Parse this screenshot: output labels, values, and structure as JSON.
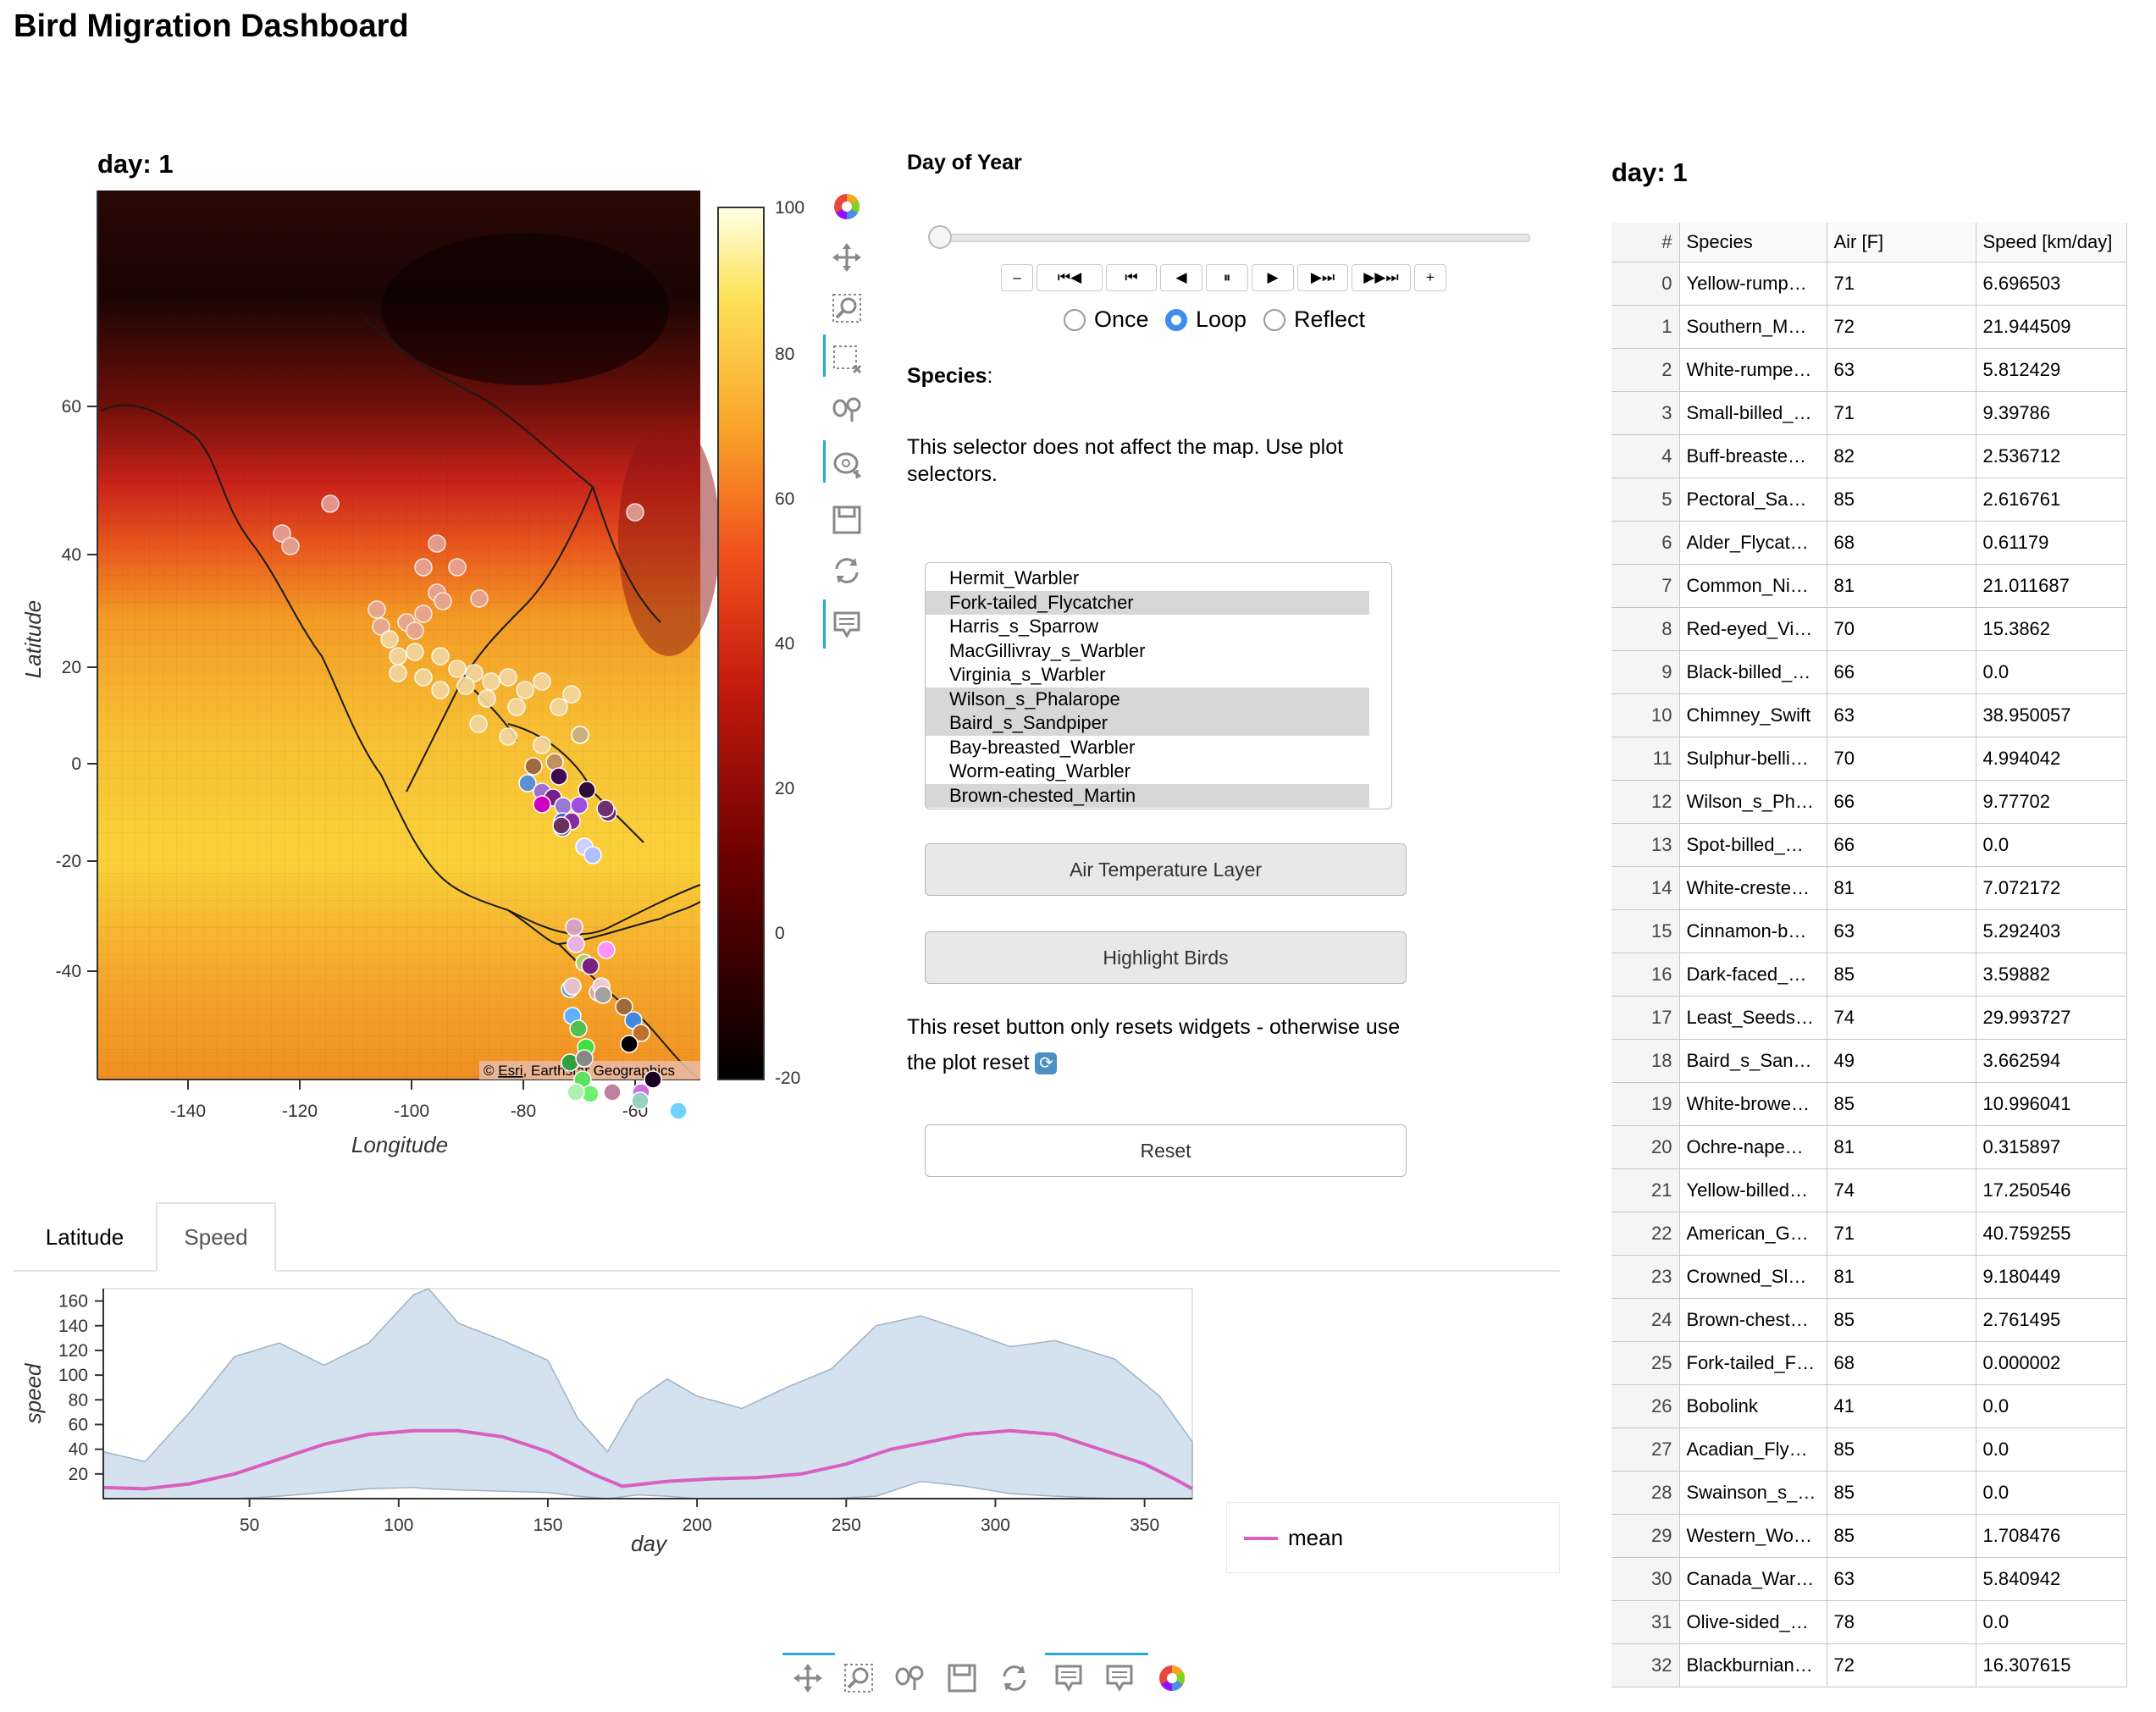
{
  "header": {
    "title": "Bird Migration Dashboard"
  },
  "map": {
    "title": "day: 1",
    "xlabel": "Longitude",
    "ylabel": "Latitude",
    "xticks": [
      "-140",
      "-120",
      "-100",
      "-80",
      "-60"
    ],
    "yticks": [
      "60",
      "40",
      "20",
      "0",
      "-20",
      "-40"
    ],
    "attribution_prefix": "© ",
    "attribution_link": "Esri",
    "attribution_suffix": ", Earthstar Geographics",
    "colorbar_ticks": [
      "100",
      "80",
      "60",
      "40",
      "20",
      "0",
      "-20"
    ]
  },
  "toolbar_icons": [
    "bokeh-logo-icon",
    "pan-icon",
    "wheel-zoom-icon",
    "box-select-icon",
    "box-zoom-icon",
    "lasso-icon",
    "save-icon",
    "reset-icon",
    "hover-icon"
  ],
  "controls": {
    "day_label": "Day of Year",
    "player_buttons": [
      "–",
      "⏮◀",
      "⏮",
      "◀",
      "⏸",
      "▶",
      "▶⏭",
      "▶▶⏭",
      "+"
    ],
    "loop_options": [
      "Once",
      "Loop",
      "Reflect"
    ],
    "loop_selected": "Loop",
    "species_label": "Species",
    "species_colon": ":",
    "species_note": "This selector does not affect the map. Use plot selectors.",
    "species_options": [
      {
        "name": "Hermit_Warbler",
        "selected": false
      },
      {
        "name": "Fork-tailed_Flycatcher",
        "selected": true
      },
      {
        "name": "Harris_s_Sparrow",
        "selected": false
      },
      {
        "name": "MacGillivray_s_Warbler",
        "selected": false
      },
      {
        "name": "Virginia_s_Warbler",
        "selected": false
      },
      {
        "name": "Wilson_s_Phalarope",
        "selected": true
      },
      {
        "name": "Baird_s_Sandpiper",
        "selected": true
      },
      {
        "name": "Bay-breasted_Warbler",
        "selected": false
      },
      {
        "name": "Worm-eating_Warbler",
        "selected": false
      },
      {
        "name": "Brown-chested_Martin",
        "selected": true
      }
    ],
    "air_button": "Air Temperature Layer",
    "highlight_button": "Highlight Birds",
    "reset_note": "This reset button only resets widgets - otherwise use the plot reset",
    "reset_button": "Reset"
  },
  "tabs": [
    "Latitude",
    "Speed"
  ],
  "chart_data": {
    "type": "area",
    "xlabel": "day",
    "ylabel": "speed",
    "xlim": [
      1,
      366
    ],
    "ylim": [
      0,
      170
    ],
    "xticks": [
      50,
      100,
      150,
      200,
      250,
      300,
      350
    ],
    "yticks": [
      20,
      40,
      60,
      80,
      100,
      120,
      140,
      160
    ],
    "legend": "mean",
    "series": [
      {
        "name": "band",
        "x": [
          1,
          15,
          30,
          45,
          60,
          75,
          90,
          105,
          110,
          120,
          135,
          150,
          160,
          170,
          180,
          190,
          200,
          215,
          230,
          245,
          260,
          275,
          290,
          305,
          320,
          340,
          355,
          366
        ],
        "upper": [
          38,
          30,
          70,
          115,
          126,
          108,
          126,
          165,
          170,
          142,
          128,
          112,
          65,
          38,
          80,
          97,
          83,
          73,
          90,
          105,
          140,
          148,
          136,
          123,
          128,
          113,
          83,
          46
        ],
        "lower": [
          0,
          0,
          0,
          0,
          2,
          5,
          8,
          9,
          8,
          7,
          6,
          5,
          2,
          0,
          3,
          2,
          0,
          0,
          0,
          0,
          2,
          14,
          10,
          4,
          2,
          0,
          0,
          0
        ]
      },
      {
        "name": "mean",
        "x": [
          1,
          15,
          30,
          45,
          60,
          75,
          90,
          105,
          120,
          135,
          150,
          165,
          175,
          190,
          205,
          220,
          235,
          250,
          265,
          280,
          290,
          305,
          320,
          335,
          350,
          360,
          366
        ],
        "y": [
          9,
          8,
          12,
          20,
          32,
          44,
          52,
          55,
          55,
          50,
          38,
          20,
          10,
          14,
          16,
          17,
          20,
          28,
          40,
          47,
          52,
          55,
          52,
          40,
          28,
          16,
          8
        ]
      }
    ]
  },
  "table": {
    "title": "day: 1",
    "columns": [
      "#",
      "Species",
      "Air [F]",
      "Speed [km/day]"
    ],
    "rows": [
      [
        "0",
        "Yellow-rump…",
        "71",
        "6.696503"
      ],
      [
        "1",
        "Southern_M…",
        "72",
        "21.944509"
      ],
      [
        "2",
        "White-rumpe…",
        "63",
        "5.812429"
      ],
      [
        "3",
        "Small-billed_…",
        "71",
        "9.39786"
      ],
      [
        "4",
        "Buff-breaste…",
        "82",
        "2.536712"
      ],
      [
        "5",
        "Pectoral_Sa…",
        "85",
        "2.616761"
      ],
      [
        "6",
        "Alder_Flycat…",
        "68",
        "0.61179"
      ],
      [
        "7",
        "Common_Ni…",
        "81",
        "21.011687"
      ],
      [
        "8",
        "Red-eyed_Vi…",
        "70",
        "15.3862"
      ],
      [
        "9",
        "Black-billed_…",
        "66",
        "0.0"
      ],
      [
        "10",
        "Chimney_Swift",
        "63",
        "38.950057"
      ],
      [
        "11",
        "Sulphur-belli…",
        "70",
        "4.994042"
      ],
      [
        "12",
        "Wilson_s_Ph…",
        "66",
        "9.77702"
      ],
      [
        "13",
        "Spot-billed_…",
        "66",
        "0.0"
      ],
      [
        "14",
        "White-creste…",
        "81",
        "7.072172"
      ],
      [
        "15",
        "Cinnamon-b…",
        "63",
        "5.292403"
      ],
      [
        "16",
        "Dark-faced_…",
        "85",
        "3.59882"
      ],
      [
        "17",
        "Least_Seeds…",
        "74",
        "29.993727"
      ],
      [
        "18",
        "Baird_s_San…",
        "49",
        "3.662594"
      ],
      [
        "19",
        "White-browe…",
        "85",
        "10.996041"
      ],
      [
        "20",
        "Ochre-nape…",
        "81",
        "0.315897"
      ],
      [
        "21",
        "Yellow-billed…",
        "74",
        "17.250546"
      ],
      [
        "22",
        "American_G…",
        "71",
        "40.759255"
      ],
      [
        "23",
        "Crowned_Sl…",
        "81",
        "9.180449"
      ],
      [
        "24",
        "Brown-chest…",
        "85",
        "2.761495"
      ],
      [
        "25",
        "Fork-tailed_F…",
        "68",
        "0.000002"
      ],
      [
        "26",
        "Bobolink",
        "41",
        "0.0"
      ],
      [
        "27",
        "Acadian_Fly…",
        "85",
        "0.0"
      ],
      [
        "28",
        "Swainson_s_…",
        "85",
        "0.0"
      ],
      [
        "29",
        "Western_Wo…",
        "85",
        "1.708476"
      ],
      [
        "30",
        "Canada_War…",
        "63",
        "5.840942"
      ],
      [
        "31",
        "Olive-sided_…",
        "78",
        "0.0"
      ],
      [
        "32",
        "Blackburnian…",
        "72",
        "16.307615"
      ]
    ]
  },
  "colors": {
    "accent": "#3b8ee9",
    "band": "#d3e2ee",
    "mean": "#d95fc0"
  }
}
